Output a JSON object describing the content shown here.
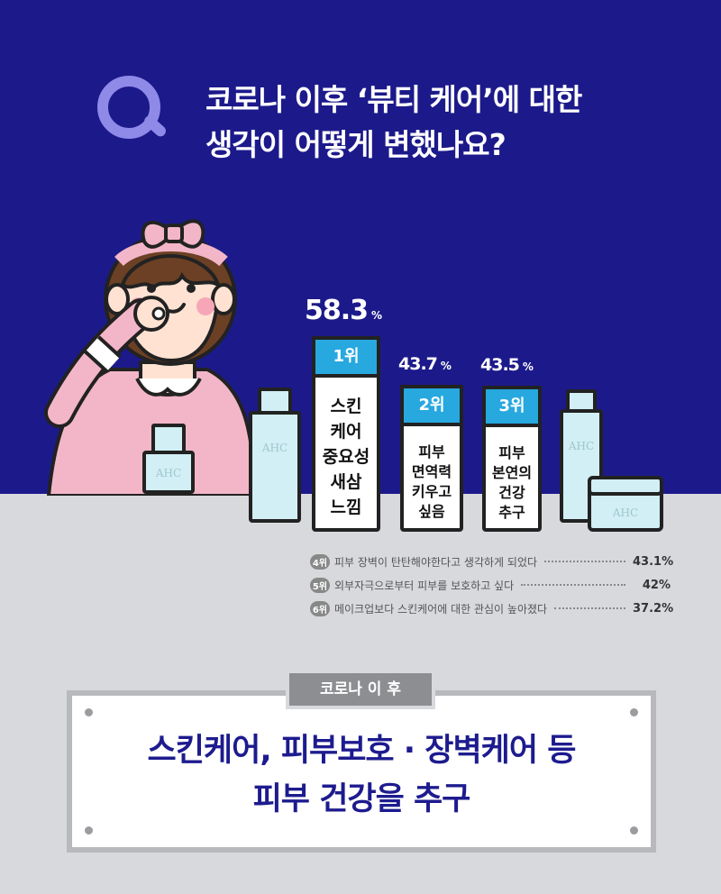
{
  "question": {
    "mark": "Q",
    "line1": "코로나 이후 ‘뷰티 케어’에 대한",
    "line2": "생각이 어떻게 변했나요?"
  },
  "chart_data": {
    "type": "bar",
    "unit": "%",
    "categories": [
      "스킨 케어 중요성 새삼 느낌",
      "피부 면역력 키우고 싶음",
      "피부 본연의 건강 추구"
    ],
    "values": [
      58.3,
      43.7,
      43.5
    ],
    "ranks": [
      "1위",
      "2위",
      "3위"
    ],
    "labels": [
      "스킨\n케어\n중요성\n새삼\n느낌",
      "피부\n면역력\n키우고\n싶음",
      "피부\n본연의\n건강\n추구"
    ],
    "value_labels": [
      "58.3",
      "43.7",
      "43.5"
    ],
    "other_ranks": [
      {
        "rank": "4위",
        "text": "피부 장벽이 탄탄해야한다고 생각하게 되었다",
        "value": "43.1%"
      },
      {
        "rank": "5위",
        "text": "외부자극으로부터 피부를 보호하고 싶다",
        "value": "42%"
      },
      {
        "rank": "6위",
        "text": "메이크업보다 스킨케어에 대한 관심이 높아졌다",
        "value": "37.2%"
      }
    ]
  },
  "decor": {
    "brand": "AHC",
    "colors": {
      "background": "#1c1a8a",
      "accent": "#27a8df",
      "floor": "#d8d9dd",
      "q": "#8f8ae8"
    }
  },
  "conclusion": {
    "tag": "코로나 이 후",
    "line1": "스킨케어, 피부보호 · 장벽케어 등",
    "line2": "피부 건강을 추구"
  }
}
